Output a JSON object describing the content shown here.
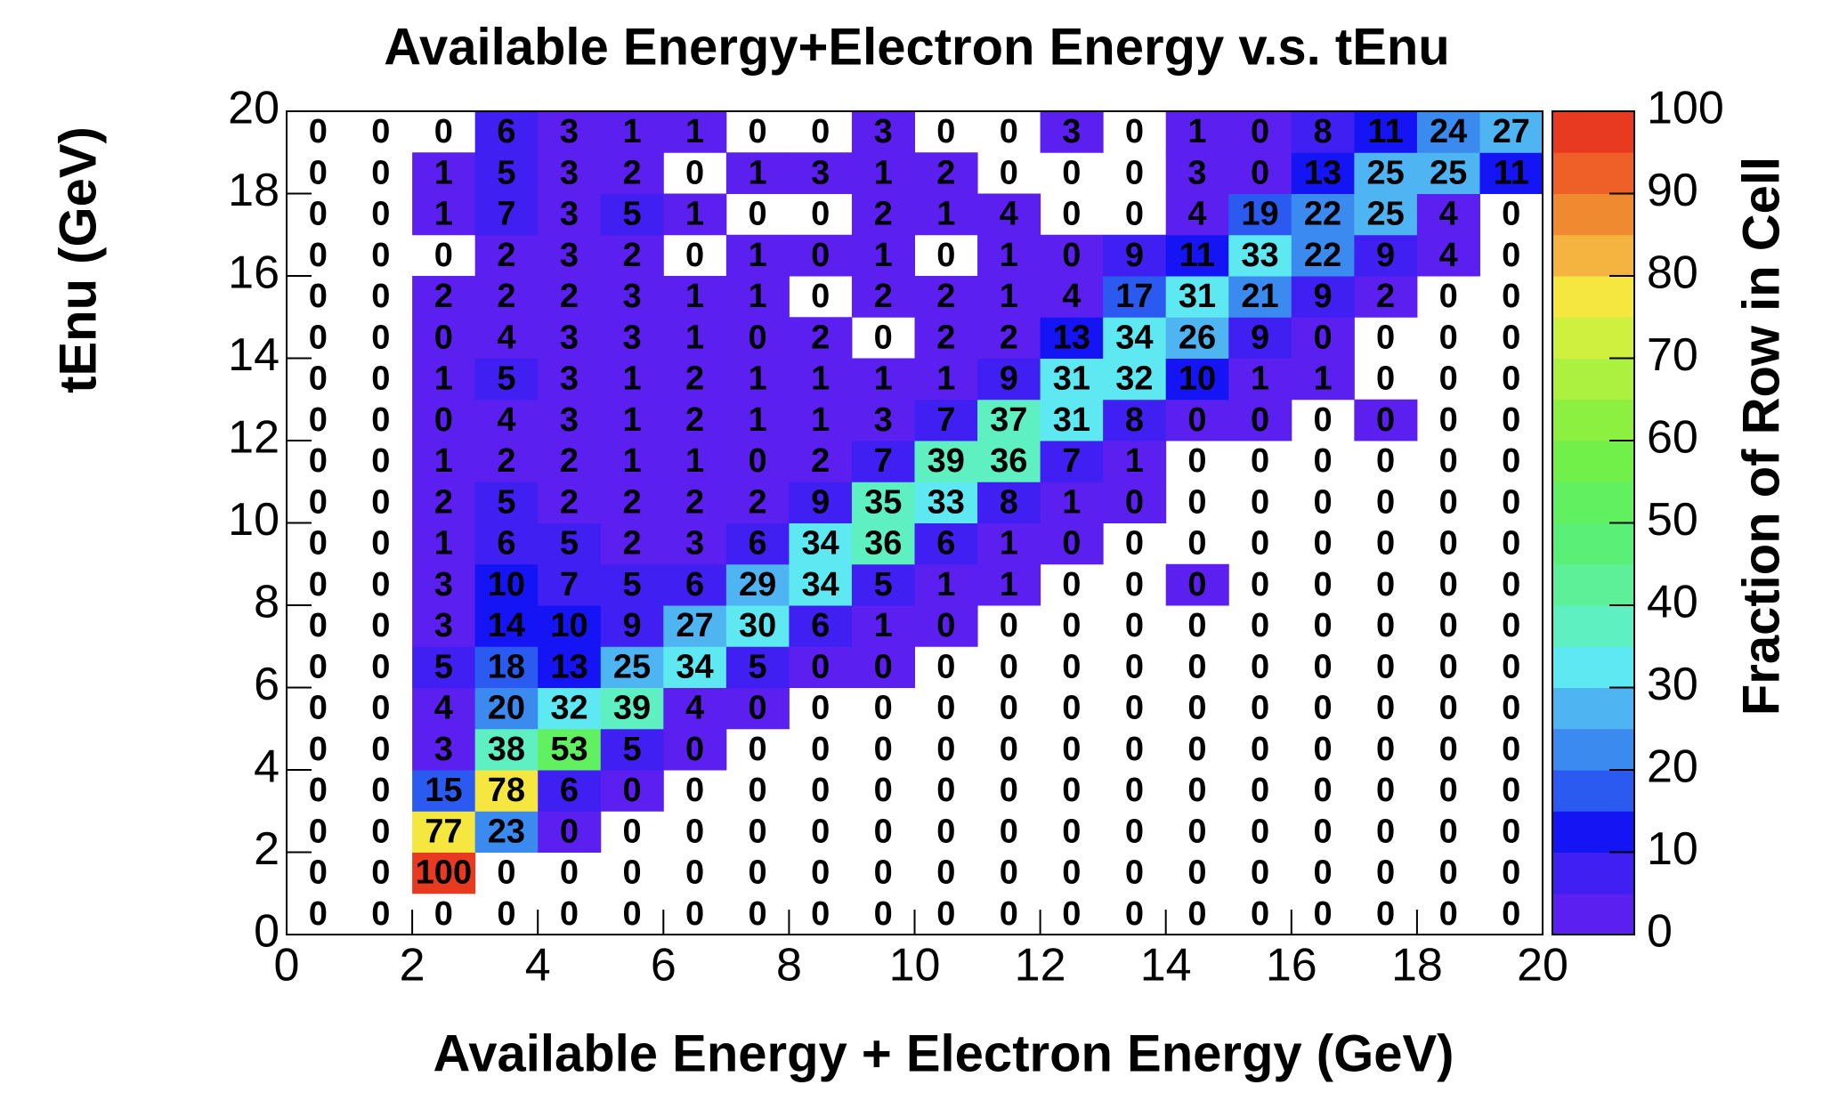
{
  "chart_data": {
    "type": "heatmap",
    "title": "Available Energy+Electron Energy v.s. tEnu",
    "x_label": "Available Energy + Electron Energy (GeV)",
    "y_label": "tEnu (GeV)",
    "z_label": "Fraction of Row in Cell",
    "xlim": [
      0,
      20
    ],
    "ylim": [
      0,
      20
    ],
    "zlim": [
      0,
      100
    ],
    "xticks": [
      0,
      2,
      4,
      6,
      8,
      10,
      12,
      14,
      16,
      18,
      20
    ],
    "yticks": [
      0,
      2,
      4,
      6,
      8,
      10,
      12,
      14,
      16,
      18,
      20
    ],
    "zticks": [
      0,
      10,
      20,
      30,
      40,
      50,
      60,
      70,
      80,
      90,
      100
    ],
    "xbins": [
      0,
      1,
      2,
      3,
      4,
      5,
      6,
      7,
      8,
      9,
      10,
      11,
      12,
      13,
      14,
      15,
      16,
      17,
      18,
      19,
      20
    ],
    "ybins": [
      0,
      1,
      2,
      3,
      4,
      5,
      6,
      7,
      8,
      9,
      10,
      11,
      12,
      13,
      14,
      15,
      16,
      17,
      18,
      19,
      20
    ],
    "palette": [
      "#5b1ff0",
      "#3f1ff2",
      "#1414f5",
      "#2a5af0",
      "#3b8af0",
      "#4fb4f2",
      "#5ee8f2",
      "#5ef0c0",
      "#5ef098",
      "#5af078",
      "#60f060",
      "#70f048",
      "#8cf040",
      "#acf040",
      "#d0f040",
      "#f5e640",
      "#f5b440",
      "#f08a30",
      "#ee6028",
      "#e83a20"
    ],
    "z": [
      [
        0,
        0,
        0,
        0,
        0,
        0,
        0,
        0,
        0,
        0,
        0,
        0,
        0,
        0,
        0,
        0,
        0,
        0,
        0,
        0
      ],
      [
        0,
        0,
        100,
        0,
        0,
        0,
        0,
        0,
        0,
        0,
        0,
        0,
        0,
        0,
        0,
        0,
        0,
        0,
        0,
        0
      ],
      [
        0,
        0,
        77,
        23,
        0.2,
        0,
        0,
        0,
        0,
        0,
        0,
        0,
        0,
        0,
        0,
        0,
        0,
        0,
        0,
        0
      ],
      [
        0,
        0,
        15,
        78,
        6,
        0.2,
        0,
        0,
        0,
        0,
        0,
        0,
        0,
        0,
        0,
        0,
        0,
        0,
        0,
        0
      ],
      [
        0,
        0,
        3,
        38,
        53,
        5,
        0.2,
        0,
        0,
        0,
        0,
        0,
        0,
        0,
        0,
        0,
        0,
        0,
        0,
        0
      ],
      [
        0,
        0,
        4,
        20,
        32,
        39,
        4,
        0.2,
        0,
        0,
        0,
        0,
        0,
        0,
        0,
        0,
        0,
        0,
        0,
        0
      ],
      [
        0,
        0,
        5,
        18,
        13,
        25,
        34,
        5,
        0.2,
        0.2,
        0,
        0,
        0,
        0,
        0,
        0,
        0,
        0,
        0,
        0
      ],
      [
        0,
        0,
        3,
        14,
        10,
        9,
        27,
        30,
        6,
        1,
        0.2,
        0,
        0,
        0,
        0,
        0,
        0,
        0,
        0,
        0
      ],
      [
        0,
        0,
        3,
        10,
        7,
        5,
        6,
        29,
        34,
        5,
        1,
        1,
        0,
        0,
        0.2,
        0,
        0,
        0,
        0,
        0
      ],
      [
        0,
        0,
        1,
        6,
        5,
        2,
        3,
        6,
        34,
        36,
        6,
        1,
        0.2,
        0,
        0,
        0,
        0,
        0,
        0,
        0
      ],
      [
        0,
        0,
        2,
        5,
        2,
        2,
        2,
        2,
        9,
        35,
        33,
        8,
        1,
        0.2,
        0,
        0,
        0,
        0,
        0,
        0
      ],
      [
        0,
        0,
        1,
        2,
        2,
        1,
        1,
        0.2,
        2,
        7,
        39,
        36,
        7,
        1,
        0,
        0,
        0,
        0,
        0,
        0
      ],
      [
        0,
        0,
        0.2,
        4,
        3,
        1,
        2,
        1,
        1,
        3,
        7,
        37,
        31,
        8,
        0.2,
        0.2,
        0,
        0.2,
        0,
        0
      ],
      [
        0,
        0,
        1,
        5,
        3,
        1,
        2,
        1,
        1,
        1,
        1,
        9,
        31,
        32,
        10,
        1,
        1,
        0,
        0,
        0
      ],
      [
        0,
        0,
        0.2,
        4,
        3,
        3,
        1,
        0.2,
        2,
        0,
        2,
        2,
        13,
        34,
        26,
        9,
        0.2,
        0,
        0,
        0
      ],
      [
        0,
        0,
        2,
        2,
        2,
        3,
        1,
        1,
        0,
        2,
        2,
        1,
        4,
        17,
        31,
        21,
        9,
        2,
        0,
        0
      ],
      [
        0,
        0,
        0,
        2,
        3,
        2,
        0,
        1,
        0.2,
        1,
        0,
        1,
        0.2,
        9,
        11,
        33,
        22,
        9,
        4,
        0
      ],
      [
        0,
        0,
        1,
        7,
        3,
        5,
        1,
        0,
        0,
        2,
        1,
        4,
        0,
        0,
        4,
        19,
        22,
        25,
        4,
        0
      ],
      [
        0,
        0,
        1,
        5,
        3,
        2,
        0,
        1,
        3,
        1,
        2,
        0,
        0,
        0,
        3,
        0.2,
        13,
        25,
        25,
        11
      ],
      [
        0,
        0,
        0,
        6,
        3,
        1,
        1,
        0,
        0,
        3,
        0,
        0,
        3,
        0,
        1,
        0.2,
        8,
        11,
        24,
        27
      ]
    ],
    "z_labels": [
      [
        "0",
        "0",
        "0",
        "0",
        "0",
        "0",
        "0",
        "0",
        "0",
        "0",
        "0",
        "0",
        "0",
        "0",
        "0",
        "0",
        "0",
        "0",
        "0",
        "0"
      ],
      [
        "0",
        "0",
        "100",
        "0",
        "0",
        "0",
        "0",
        "0",
        "0",
        "0",
        "0",
        "0",
        "0",
        "0",
        "0",
        "0",
        "0",
        "0",
        "0",
        "0"
      ],
      [
        "0",
        "0",
        "77",
        "23",
        "0",
        "0",
        "0",
        "0",
        "0",
        "0",
        "0",
        "0",
        "0",
        "0",
        "0",
        "0",
        "0",
        "0",
        "0",
        "0"
      ],
      [
        "0",
        "0",
        "15",
        "78",
        "6",
        "0",
        "0",
        "0",
        "0",
        "0",
        "0",
        "0",
        "0",
        "0",
        "0",
        "0",
        "0",
        "0",
        "0",
        "0"
      ],
      [
        "0",
        "0",
        "3",
        "38",
        "53",
        "5",
        "0",
        "0",
        "0",
        "0",
        "0",
        "0",
        "0",
        "0",
        "0",
        "0",
        "0",
        "0",
        "0",
        "0"
      ],
      [
        "0",
        "0",
        "4",
        "20",
        "32",
        "39",
        "4",
        "0",
        "0",
        "0",
        "0",
        "0",
        "0",
        "0",
        "0",
        "0",
        "0",
        "0",
        "0",
        "0"
      ],
      [
        "0",
        "0",
        "5",
        "18",
        "13",
        "25",
        "34",
        "5",
        "0",
        "0",
        "0",
        "0",
        "0",
        "0",
        "0",
        "0",
        "0",
        "0",
        "0",
        "0"
      ],
      [
        "0",
        "0",
        "3",
        "14",
        "10",
        "9",
        "27",
        "30",
        "6",
        "1",
        "0",
        "0",
        "0",
        "0",
        "0",
        "0",
        "0",
        "0",
        "0",
        "0"
      ],
      [
        "0",
        "0",
        "3",
        "10",
        "7",
        "5",
        "6",
        "29",
        "34",
        "5",
        "1",
        "1",
        "0",
        "0",
        "0",
        "0",
        "0",
        "0",
        "0",
        "0"
      ],
      [
        "0",
        "0",
        "1",
        "6",
        "5",
        "2",
        "3",
        "6",
        "34",
        "36",
        "6",
        "1",
        "0",
        "0",
        "0",
        "0",
        "0",
        "0",
        "0",
        "0"
      ],
      [
        "0",
        "0",
        "2",
        "5",
        "2",
        "2",
        "2",
        "2",
        "9",
        "35",
        "33",
        "8",
        "1",
        "0",
        "0",
        "0",
        "0",
        "0",
        "0",
        "0"
      ],
      [
        "0",
        "0",
        "1",
        "2",
        "2",
        "1",
        "1",
        "0",
        "2",
        "7",
        "39",
        "36",
        "7",
        "1",
        "0",
        "0",
        "0",
        "0",
        "0",
        "0"
      ],
      [
        "0",
        "0",
        "0",
        "4",
        "3",
        "1",
        "2",
        "1",
        "1",
        "3",
        "7",
        "37",
        "31",
        "8",
        "0",
        "0",
        "0",
        "0",
        "0",
        "0"
      ],
      [
        "0",
        "0",
        "1",
        "5",
        "3",
        "1",
        "2",
        "1",
        "1",
        "1",
        "1",
        "9",
        "31",
        "32",
        "10",
        "1",
        "1",
        "0",
        "0",
        "0"
      ],
      [
        "0",
        "0",
        "0",
        "4",
        "3",
        "3",
        "1",
        "0",
        "2",
        "0",
        "2",
        "2",
        "13",
        "34",
        "26",
        "9",
        "0",
        "0",
        "0",
        "0"
      ],
      [
        "0",
        "0",
        "2",
        "2",
        "2",
        "3",
        "1",
        "1",
        "0",
        "2",
        "2",
        "1",
        "4",
        "17",
        "31",
        "21",
        "9",
        "2",
        "0",
        "0"
      ],
      [
        "0",
        "0",
        "0",
        "2",
        "3",
        "2",
        "0",
        "1",
        "0",
        "1",
        "0",
        "1",
        "0",
        "9",
        "11",
        "33",
        "22",
        "9",
        "4",
        "0"
      ],
      [
        "0",
        "0",
        "1",
        "7",
        "3",
        "5",
        "1",
        "0",
        "0",
        "2",
        "1",
        "4",
        "0",
        "0",
        "4",
        "19",
        "22",
        "25",
        "4",
        "0"
      ],
      [
        "0",
        "0",
        "1",
        "5",
        "3",
        "2",
        "0",
        "1",
        "3",
        "1",
        "2",
        "0",
        "0",
        "0",
        "3",
        "0",
        "13",
        "25",
        "25",
        "11"
      ],
      [
        "0",
        "0",
        "0",
        "6",
        "3",
        "1",
        "1",
        "0",
        "0",
        "3",
        "0",
        "0",
        "3",
        "0",
        "1",
        "0",
        "8",
        "11",
        "24",
        "27"
      ]
    ]
  }
}
